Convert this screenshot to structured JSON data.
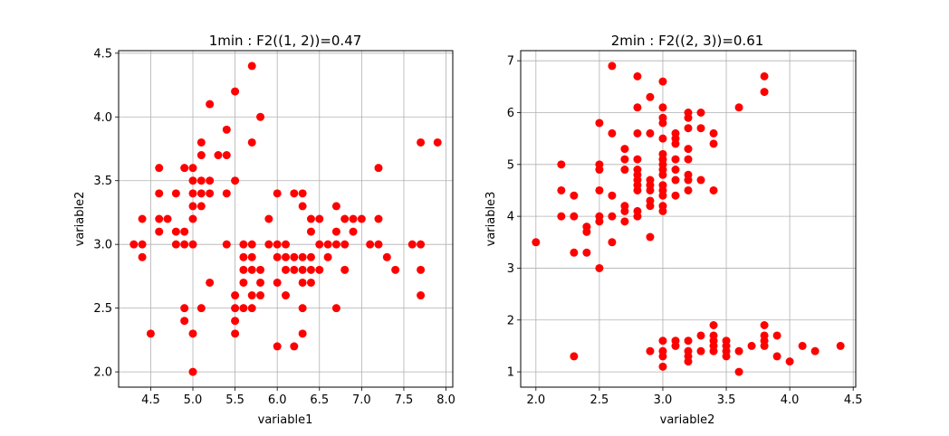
{
  "chart_data": [
    {
      "type": "scatter",
      "title": "1min : F2((1, 2))=0.47",
      "xlabel": "variable1",
      "ylabel": "variable2",
      "xlim": [
        4.12,
        8.08
      ],
      "ylim": [
        1.88,
        4.52
      ],
      "xticks": [
        "4.5",
        "5.0",
        "5.5",
        "6.0",
        "6.5",
        "7.0",
        "7.5",
        "8.0"
      ],
      "yticks": [
        "2.0",
        "2.5",
        "3.0",
        "3.5",
        "4.0",
        "4.5"
      ],
      "grid": true,
      "marker_color": "#ff0000",
      "points": [
        [
          4.3,
          3.0
        ],
        [
          4.4,
          3.0
        ],
        [
          4.4,
          3.2
        ],
        [
          4.4,
          2.9
        ],
        [
          4.5,
          2.3
        ],
        [
          4.6,
          3.6
        ],
        [
          4.6,
          3.4
        ],
        [
          4.6,
          3.2
        ],
        [
          4.6,
          3.1
        ],
        [
          4.7,
          3.2
        ],
        [
          4.8,
          3.4
        ],
        [
          4.8,
          3.1
        ],
        [
          4.8,
          3.0
        ],
        [
          4.9,
          3.6
        ],
        [
          4.9,
          3.1
        ],
        [
          4.9,
          3.0
        ],
        [
          4.9,
          2.5
        ],
        [
          4.9,
          2.4
        ],
        [
          5.0,
          3.6
        ],
        [
          5.0,
          3.5
        ],
        [
          5.0,
          3.4
        ],
        [
          5.0,
          3.3
        ],
        [
          5.0,
          3.2
        ],
        [
          5.0,
          3.0
        ],
        [
          5.0,
          2.3
        ],
        [
          5.0,
          2.0
        ],
        [
          5.1,
          3.8
        ],
        [
          5.1,
          3.7
        ],
        [
          5.1,
          3.5
        ],
        [
          5.1,
          3.4
        ],
        [
          5.1,
          3.3
        ],
        [
          5.1,
          2.5
        ],
        [
          5.2,
          4.1
        ],
        [
          5.2,
          3.5
        ],
        [
          5.2,
          3.4
        ],
        [
          5.2,
          2.7
        ],
        [
          5.3,
          3.7
        ],
        [
          5.4,
          3.9
        ],
        [
          5.4,
          3.7
        ],
        [
          5.4,
          3.4
        ],
        [
          5.4,
          3.0
        ],
        [
          5.5,
          4.2
        ],
        [
          5.5,
          3.5
        ],
        [
          5.5,
          2.6
        ],
        [
          5.5,
          2.5
        ],
        [
          5.5,
          2.4
        ],
        [
          5.5,
          2.3
        ],
        [
          5.6,
          3.0
        ],
        [
          5.6,
          2.9
        ],
        [
          5.6,
          2.8
        ],
        [
          5.6,
          2.7
        ],
        [
          5.6,
          2.5
        ],
        [
          5.7,
          4.4
        ],
        [
          5.7,
          3.8
        ],
        [
          5.7,
          3.0
        ],
        [
          5.7,
          2.9
        ],
        [
          5.7,
          2.8
        ],
        [
          5.7,
          2.6
        ],
        [
          5.7,
          2.5
        ],
        [
          5.8,
          4.0
        ],
        [
          5.8,
          2.8
        ],
        [
          5.8,
          2.7
        ],
        [
          5.8,
          2.6
        ],
        [
          5.9,
          3.2
        ],
        [
          5.9,
          3.0
        ],
        [
          6.0,
          3.4
        ],
        [
          6.0,
          3.0
        ],
        [
          6.0,
          2.9
        ],
        [
          6.0,
          2.7
        ],
        [
          6.0,
          2.2
        ],
        [
          6.1,
          3.0
        ],
        [
          6.1,
          2.9
        ],
        [
          6.1,
          2.8
        ],
        [
          6.1,
          2.6
        ],
        [
          6.2,
          3.4
        ],
        [
          6.2,
          2.9
        ],
        [
          6.2,
          2.8
        ],
        [
          6.2,
          2.2
        ],
        [
          6.3,
          3.4
        ],
        [
          6.3,
          3.3
        ],
        [
          6.3,
          2.9
        ],
        [
          6.3,
          2.8
        ],
        [
          6.3,
          2.7
        ],
        [
          6.3,
          2.5
        ],
        [
          6.3,
          2.3
        ],
        [
          6.4,
          3.2
        ],
        [
          6.4,
          3.1
        ],
        [
          6.4,
          2.9
        ],
        [
          6.4,
          2.8
        ],
        [
          6.4,
          2.7
        ],
        [
          6.5,
          3.2
        ],
        [
          6.5,
          3.0
        ],
        [
          6.5,
          2.8
        ],
        [
          6.6,
          3.0
        ],
        [
          6.6,
          2.9
        ],
        [
          6.7,
          3.3
        ],
        [
          6.7,
          3.1
        ],
        [
          6.7,
          3.0
        ],
        [
          6.7,
          2.5
        ],
        [
          6.8,
          3.2
        ],
        [
          6.8,
          3.0
        ],
        [
          6.8,
          2.8
        ],
        [
          6.9,
          3.2
        ],
        [
          6.9,
          3.1
        ],
        [
          7.0,
          3.2
        ],
        [
          7.1,
          3.0
        ],
        [
          7.2,
          3.6
        ],
        [
          7.2,
          3.2
        ],
        [
          7.2,
          3.0
        ],
        [
          7.3,
          2.9
        ],
        [
          7.4,
          2.8
        ],
        [
          7.6,
          3.0
        ],
        [
          7.7,
          3.8
        ],
        [
          7.7,
          3.0
        ],
        [
          7.7,
          2.8
        ],
        [
          7.7,
          2.6
        ],
        [
          7.9,
          3.8
        ]
      ]
    },
    {
      "type": "scatter",
      "title": "2min : F2((2, 3))=0.61",
      "xlabel": "variable2",
      "ylabel": "variable3",
      "xlim": [
        1.88,
        4.52
      ],
      "ylim": [
        0.705,
        7.195
      ],
      "xticks": [
        "2.0",
        "2.5",
        "3.0",
        "3.5",
        "4.0",
        "4.5"
      ],
      "yticks": [
        "1",
        "2",
        "3",
        "4",
        "5",
        "6",
        "7"
      ],
      "grid": true,
      "marker_color": "#ff0000",
      "points": [
        [
          2.0,
          3.5
        ],
        [
          2.2,
          5.0
        ],
        [
          2.2,
          4.5
        ],
        [
          2.2,
          4.0
        ],
        [
          2.3,
          4.4
        ],
        [
          2.3,
          4.0
        ],
        [
          2.3,
          3.3
        ],
        [
          2.3,
          1.3
        ],
        [
          2.4,
          3.8
        ],
        [
          2.4,
          3.7
        ],
        [
          2.4,
          3.3
        ],
        [
          2.5,
          5.8
        ],
        [
          2.5,
          5.0
        ],
        [
          2.5,
          4.9
        ],
        [
          2.5,
          4.5
        ],
        [
          2.5,
          4.0
        ],
        [
          2.5,
          3.9
        ],
        [
          2.5,
          3.0
        ],
        [
          2.6,
          6.9
        ],
        [
          2.6,
          5.6
        ],
        [
          2.6,
          4.4
        ],
        [
          2.6,
          4.0
        ],
        [
          2.6,
          3.5
        ],
        [
          2.7,
          5.3
        ],
        [
          2.7,
          5.1
        ],
        [
          2.7,
          4.9
        ],
        [
          2.7,
          4.2
        ],
        [
          2.7,
          4.1
        ],
        [
          2.7,
          3.9
        ],
        [
          2.8,
          6.7
        ],
        [
          2.8,
          6.1
        ],
        [
          2.8,
          5.6
        ],
        [
          2.8,
          5.1
        ],
        [
          2.8,
          4.9
        ],
        [
          2.8,
          4.8
        ],
        [
          2.8,
          4.7
        ],
        [
          2.8,
          4.6
        ],
        [
          2.8,
          4.5
        ],
        [
          2.8,
          4.1
        ],
        [
          2.8,
          4.0
        ],
        [
          2.9,
          6.3
        ],
        [
          2.9,
          5.6
        ],
        [
          2.9,
          4.7
        ],
        [
          2.9,
          4.6
        ],
        [
          2.9,
          4.5
        ],
        [
          2.9,
          4.3
        ],
        [
          2.9,
          4.2
        ],
        [
          2.9,
          3.6
        ],
        [
          2.9,
          1.4
        ],
        [
          3.0,
          6.6
        ],
        [
          3.0,
          6.1
        ],
        [
          3.0,
          5.9
        ],
        [
          3.0,
          5.8
        ],
        [
          3.0,
          5.5
        ],
        [
          3.0,
          5.2
        ],
        [
          3.0,
          5.1
        ],
        [
          3.0,
          5.0
        ],
        [
          3.0,
          4.9
        ],
        [
          3.0,
          4.8
        ],
        [
          3.0,
          4.6
        ],
        [
          3.0,
          4.5
        ],
        [
          3.0,
          4.4
        ],
        [
          3.0,
          4.2
        ],
        [
          3.0,
          4.1
        ],
        [
          3.0,
          1.6
        ],
        [
          3.0,
          1.4
        ],
        [
          3.0,
          1.3
        ],
        [
          3.0,
          1.1
        ],
        [
          3.1,
          5.6
        ],
        [
          3.1,
          5.5
        ],
        [
          3.1,
          5.4
        ],
        [
          3.1,
          5.1
        ],
        [
          3.1,
          4.9
        ],
        [
          3.1,
          4.7
        ],
        [
          3.1,
          4.4
        ],
        [
          3.1,
          1.6
        ],
        [
          3.1,
          1.5
        ],
        [
          3.2,
          6.0
        ],
        [
          3.2,
          5.9
        ],
        [
          3.2,
          5.7
        ],
        [
          3.2,
          5.3
        ],
        [
          3.2,
          5.1
        ],
        [
          3.2,
          4.8
        ],
        [
          3.2,
          4.7
        ],
        [
          3.2,
          4.5
        ],
        [
          3.2,
          1.6
        ],
        [
          3.2,
          1.4
        ],
        [
          3.2,
          1.3
        ],
        [
          3.2,
          1.2
        ],
        [
          3.3,
          6.0
        ],
        [
          3.3,
          5.7
        ],
        [
          3.3,
          4.7
        ],
        [
          3.3,
          1.7
        ],
        [
          3.3,
          1.4
        ],
        [
          3.4,
          5.6
        ],
        [
          3.4,
          5.4
        ],
        [
          3.4,
          4.5
        ],
        [
          3.4,
          1.9
        ],
        [
          3.4,
          1.7
        ],
        [
          3.4,
          1.6
        ],
        [
          3.4,
          1.5
        ],
        [
          3.4,
          1.4
        ],
        [
          3.5,
          1.6
        ],
        [
          3.5,
          1.5
        ],
        [
          3.5,
          1.4
        ],
        [
          3.5,
          1.3
        ],
        [
          3.6,
          6.1
        ],
        [
          3.6,
          1.4
        ],
        [
          3.6,
          1.0
        ],
        [
          3.7,
          1.5
        ],
        [
          3.8,
          6.7
        ],
        [
          3.8,
          6.4
        ],
        [
          3.8,
          1.9
        ],
        [
          3.8,
          1.7
        ],
        [
          3.8,
          1.6
        ],
        [
          3.8,
          1.5
        ],
        [
          3.9,
          1.7
        ],
        [
          3.9,
          1.3
        ],
        [
          4.0,
          1.2
        ],
        [
          4.1,
          1.5
        ],
        [
          4.2,
          1.4
        ],
        [
          4.4,
          1.5
        ]
      ]
    }
  ]
}
